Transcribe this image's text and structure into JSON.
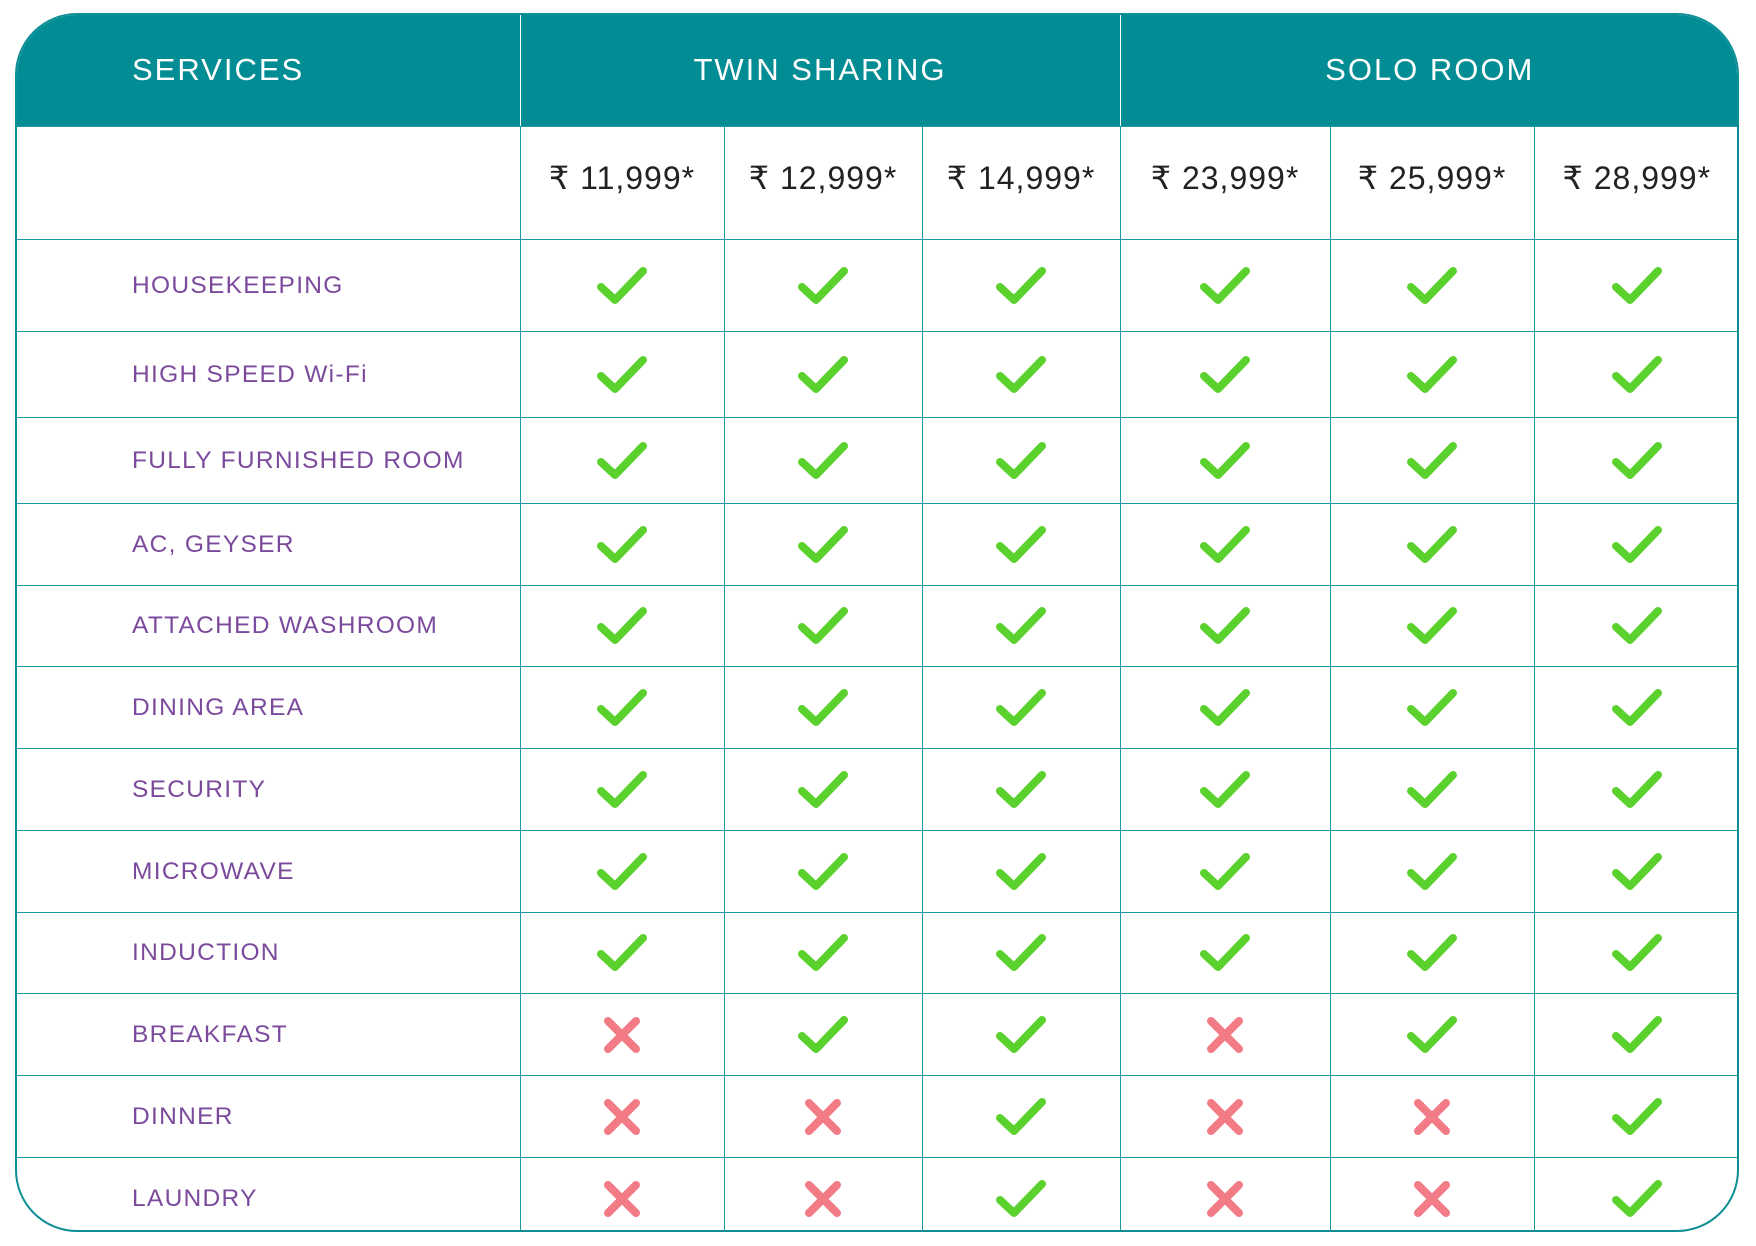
{
  "header": {
    "services": "SERVICES",
    "groups": [
      {
        "label": "TWIN SHARING"
      },
      {
        "label": "SOLO ROOM"
      }
    ]
  },
  "prices": [
    "₹ 11,999*",
    "₹ 12,999*",
    "₹ 14,999*",
    "₹ 23,999*",
    "₹ 25,999*",
    "₹ 28,999*"
  ],
  "colors": {
    "header_bg": "#028c93",
    "border": "#1b9aa0",
    "service_text": "#7b4a9c",
    "check": "#5ad12d",
    "cross": "#f27b86"
  },
  "icons": {
    "included": "check-icon",
    "excluded": "cross-icon"
  },
  "services": [
    {
      "label": "HOUSEKEEPING",
      "availability": [
        true,
        true,
        true,
        true,
        true,
        true
      ]
    },
    {
      "label": "HIGH SPEED Wi-Fi",
      "availability": [
        true,
        true,
        true,
        true,
        true,
        true
      ]
    },
    {
      "label": "FULLY FURNISHED ROOM",
      "availability": [
        true,
        true,
        true,
        true,
        true,
        true
      ]
    },
    {
      "label": "AC, GEYSER",
      "availability": [
        true,
        true,
        true,
        true,
        true,
        true
      ]
    },
    {
      "label": "ATTACHED WASHROOM",
      "availability": [
        true,
        true,
        true,
        true,
        true,
        true
      ]
    },
    {
      "label": "DINING AREA",
      "availability": [
        true,
        true,
        true,
        true,
        true,
        true
      ]
    },
    {
      "label": "SECURITY",
      "availability": [
        true,
        true,
        true,
        true,
        true,
        true
      ]
    },
    {
      "label": "MICROWAVE",
      "availability": [
        true,
        true,
        true,
        true,
        true,
        true
      ]
    },
    {
      "label": "INDUCTION",
      "availability": [
        true,
        true,
        true,
        true,
        true,
        true
      ]
    },
    {
      "label": "BREAKFAST",
      "availability": [
        false,
        true,
        true,
        false,
        true,
        true
      ]
    },
    {
      "label": "DINNER",
      "availability": [
        false,
        false,
        true,
        false,
        false,
        true
      ]
    },
    {
      "label": "LAUNDRY",
      "availability": [
        false,
        false,
        true,
        false,
        false,
        true
      ]
    }
  ]
}
